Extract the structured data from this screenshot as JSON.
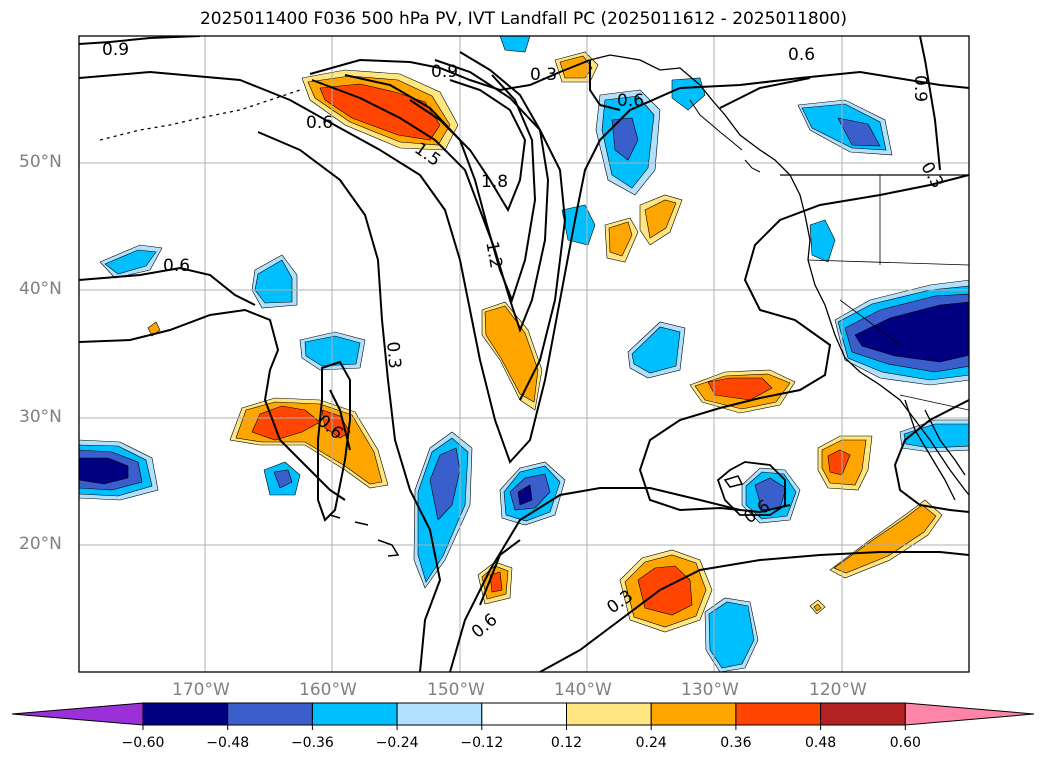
{
  "title": "2025011400 F036 500 hPa PV, IVT Landfall PC (2025011612 - 2025011800)",
  "latitude_labels": [
    "50°N",
    "40°N",
    "30°N",
    "20°N"
  ],
  "longitude_labels": [
    "170°W",
    "160°W",
    "150°W",
    "140°W",
    "130°W",
    "120°W"
  ],
  "contour_labels": [
    "0.9",
    "0.9",
    "0.3",
    "0.6",
    "0.6",
    "0.6",
    "0.9",
    "0.3",
    "1.5",
    "1.8",
    "1.2",
    "0.6",
    "0.3",
    "0.6",
    "0.6",
    "0.3",
    "0.6"
  ],
  "colorbar": {
    "ticks": [
      "−0.60",
      "−0.48",
      "−0.36",
      "−0.24",
      "−0.12",
      "0.12",
      "0.24",
      "0.36",
      "0.48",
      "0.60"
    ],
    "colors": [
      "#9b30d9",
      "#000080",
      "#3a5fcd",
      "#00bfff",
      "#b0e2ff",
      "#ffffff",
      "#ffe680",
      "#ffa500",
      "#ff4500",
      "#b22222",
      "#ff85a8"
    ]
  },
  "fill_colors": {
    "light_blue": "#b0e2ff",
    "blue": "#00bfff",
    "royal_blue": "#3a5fcd",
    "navy": "#000080",
    "yellow": "#ffe680",
    "orange": "#ffa500",
    "red_orange": "#ff4500"
  }
}
